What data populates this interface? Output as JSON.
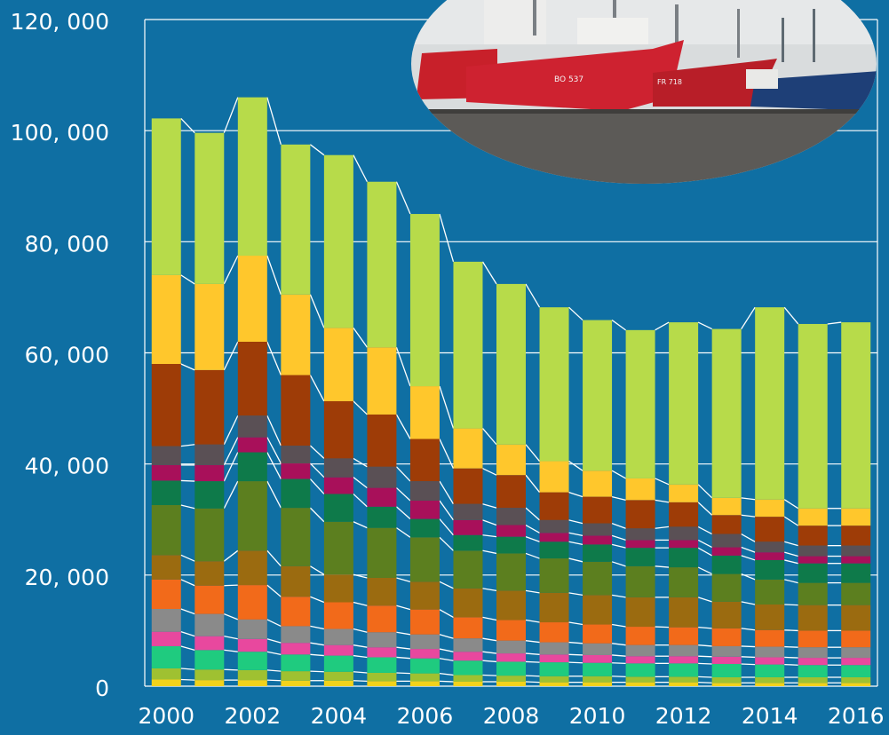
{
  "chart_data": {
    "type": "bar",
    "stacked": true,
    "title": "",
    "xlabel": "",
    "ylabel": "",
    "ylim": [
      0,
      120000
    ],
    "yticks": [
      0,
      20000,
      40000,
      60000,
      80000,
      100000,
      120000
    ],
    "ytick_labels": [
      "0",
      "20, 000",
      "40, 000",
      "60, 000",
      "80, 000",
      "100, 000",
      "120, 000"
    ],
    "xtick_labels": [
      "2000",
      "2002",
      "2004",
      "2006",
      "2008",
      "2010",
      "2012",
      "2014",
      "2016"
    ],
    "grid": true,
    "legend": "none",
    "background_color": "#0F6FA3",
    "categories": [
      "2000",
      "2001",
      "2002",
      "2003",
      "2004",
      "2005",
      "2006",
      "2007",
      "2008",
      "2009",
      "2010",
      "2011",
      "2012",
      "2013",
      "2014",
      "2015",
      "2016"
    ],
    "series": [
      {
        "color": "#F2D21B",
        "values": [
          1200,
          1100,
          1100,
          1000,
          1000,
          900,
          900,
          800,
          800,
          700,
          700,
          700,
          700,
          600,
          600,
          600,
          600
        ]
      },
      {
        "color": "#9FC131",
        "values": [
          2000,
          1900,
          1800,
          1700,
          1600,
          1500,
          1400,
          1200,
          1100,
          1100,
          1100,
          1000,
          1000,
          1000,
          1000,
          1000,
          1000
        ]
      },
      {
        "color": "#1FCB7F",
        "values": [
          4000,
          3500,
          3300,
          3000,
          2900,
          2800,
          2700,
          2600,
          2500,
          2500,
          2400,
          2400,
          2400,
          2400,
          2300,
          2200,
          2200
        ]
      },
      {
        "color": "#E8489E",
        "values": [
          2600,
          2500,
          2300,
          2100,
          1900,
          1800,
          1700,
          1600,
          1500,
          1400,
          1400,
          1300,
          1300,
          1300,
          1300,
          1300,
          1300
        ]
      },
      {
        "color": "#8A8A8A",
        "values": [
          4100,
          4000,
          3500,
          3000,
          2900,
          2700,
          2600,
          2400,
          2300,
          2200,
          2100,
          2000,
          2000,
          1900,
          1900,
          1900,
          1900
        ]
      },
      {
        "color": "#F26A1A",
        "values": [
          5300,
          5100,
          6200,
          5300,
          4800,
          4800,
          4500,
          3800,
          3700,
          3600,
          3400,
          3300,
          3200,
          3200,
          3000,
          3000,
          3000
        ]
      },
      {
        "color": "#9B6B10",
        "values": [
          4400,
          4400,
          6200,
          5500,
          5000,
          5000,
          5000,
          5200,
          5300,
          5300,
          5300,
          5300,
          5400,
          4800,
          4600,
          4600,
          4600
        ]
      },
      {
        "color": "#5C7F1F",
        "values": [
          9000,
          9500,
          12500,
          10500,
          9500,
          9000,
          8000,
          6800,
          6700,
          6200,
          6000,
          5600,
          5400,
          5000,
          4500,
          4000,
          4000
        ]
      },
      {
        "color": "#0E7A4A",
        "values": [
          4400,
          4900,
          5200,
          5200,
          5000,
          3800,
          3300,
          2800,
          3000,
          3000,
          3100,
          3300,
          3500,
          3300,
          3500,
          3500,
          3500
        ]
      },
      {
        "color": "#A8105A",
        "values": [
          2800,
          2900,
          2700,
          2800,
          3000,
          3400,
          3300,
          2700,
          2100,
          1600,
          1600,
          1400,
          1400,
          1500,
          1400,
          1300,
          1300
        ]
      },
      {
        "color": "#5A5055",
        "values": [
          3400,
          3700,
          3900,
          3200,
          3400,
          3800,
          3500,
          2900,
          3100,
          2300,
          2200,
          2100,
          2400,
          2400,
          1900,
          1900,
          1900
        ]
      },
      {
        "color": "#9E3C07",
        "values": [
          14800,
          13400,
          13300,
          12700,
          10300,
          9400,
          7600,
          6400,
          5900,
          5000,
          4800,
          5100,
          4400,
          3400,
          4500,
          3600,
          3600
        ]
      },
      {
        "color": "#FFC72C",
        "values": [
          16000,
          15500,
          15500,
          14500,
          13200,
          12100,
          9500,
          7200,
          5500,
          5600,
          4700,
          3900,
          3200,
          3100,
          3100,
          3100,
          3100
        ]
      },
      {
        "color": "#B7DB4A",
        "values": [
          28200,
          27200,
          28500,
          27000,
          31100,
          29800,
          31000,
          30000,
          28900,
          27700,
          27100,
          26700,
          29200,
          30400,
          34600,
          33200,
          33500
        ]
      }
    ]
  },
  "photo": {
    "description_icon": "fishing-vessels-photo",
    "hull_color": "#C8202A",
    "hull_marks": [
      "BO 537",
      "FR 718"
    ]
  }
}
